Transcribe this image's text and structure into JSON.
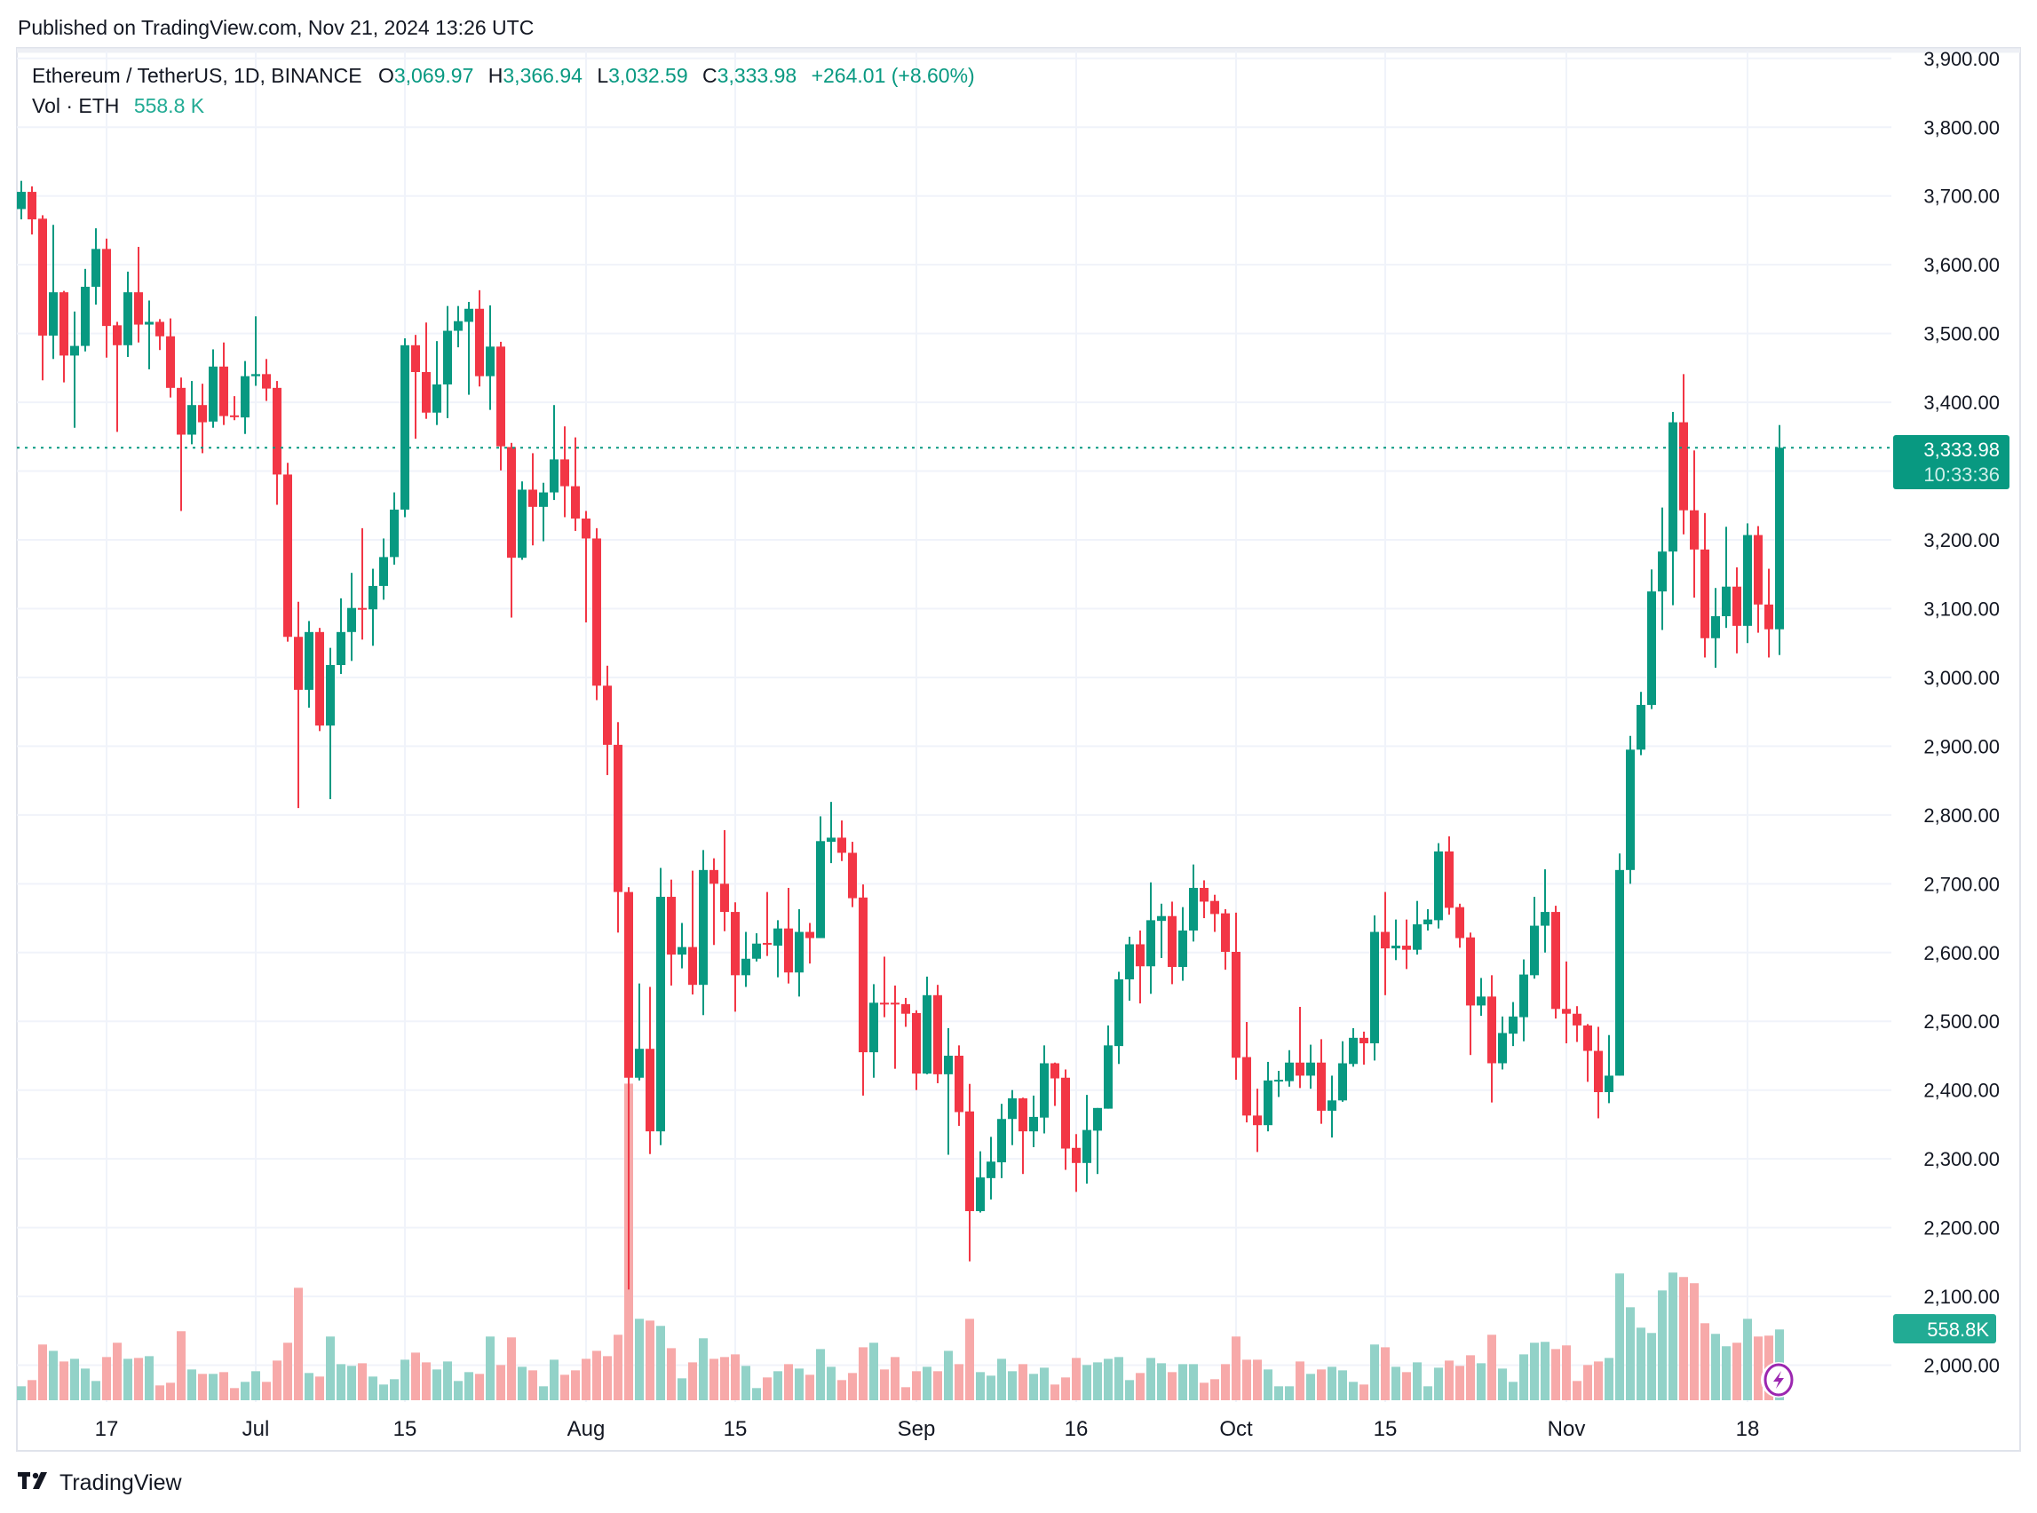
{
  "published": "Published on TradingView.com, Nov 21, 2024 13:26 UTC",
  "legend": {
    "symbol": "Ethereum / TetherUS, 1D, BINANCE",
    "o_label": "O",
    "o": "3,069.97",
    "h_label": "H",
    "h": "3,366.94",
    "l_label": "L",
    "l": "3,032.59",
    "c_label": "C",
    "c": "3,333.98",
    "change": "+264.01 (+8.60%)",
    "vol_label": "Vol · ETH",
    "vol": "558.8 K"
  },
  "price_badge": {
    "price": "3,333.98",
    "countdown": "10:33:36"
  },
  "volume_badge": "558.8K",
  "logo": "TradingView",
  "icons": {
    "lightning": "lightning-icon",
    "logo": "tradingview-logo-icon"
  },
  "colors": {
    "up": "#089981",
    "down": "#F23645",
    "up_volume": "#92d2c8",
    "down_volume": "#f7a9a9",
    "badge": "#089981",
    "lightning": "#9c27b0"
  },
  "chart_data": {
    "type": "candlestick",
    "symbol": "ETHUSDT",
    "interval": "1D",
    "ylim": [
      1950,
      3920
    ],
    "grid": true,
    "last_price": 3333.98,
    "y_ticks": [
      "3,900.00",
      "3,800.00",
      "3,700.00",
      "3,600.00",
      "3,500.00",
      "3,400.00",
      "3,200.00",
      "3,100.00",
      "3,000.00",
      "2,900.00",
      "2,800.00",
      "2,700.00",
      "2,600.00",
      "2,500.00",
      "2,400.00",
      "2,300.00",
      "2,200.00",
      "2,100.00",
      "2,000.00"
    ],
    "y_tick_values": [
      3900,
      3800,
      3700,
      3600,
      3500,
      3400,
      3200,
      3100,
      3000,
      2900,
      2800,
      2700,
      2600,
      2500,
      2400,
      2300,
      2200,
      2100,
      2000
    ],
    "x_ticks": [
      {
        "label": "17",
        "date": "2024-06-17"
      },
      {
        "label": "Jul",
        "date": "2024-07-01"
      },
      {
        "label": "15",
        "date": "2024-07-15"
      },
      {
        "label": "Aug",
        "date": "2024-08-01"
      },
      {
        "label": "15",
        "date": "2024-08-15"
      },
      {
        "label": "Sep",
        "date": "2024-09-01"
      },
      {
        "label": "16",
        "date": "2024-09-16"
      },
      {
        "label": "Oct",
        "date": "2024-10-01"
      },
      {
        "label": "15",
        "date": "2024-10-15"
      },
      {
        "label": "Nov",
        "date": "2024-11-01"
      },
      {
        "label": "18",
        "date": "2024-11-18"
      }
    ],
    "dates": [
      "2024-06-09",
      "2024-06-10",
      "2024-06-11",
      "2024-06-12",
      "2024-06-13",
      "2024-06-14",
      "2024-06-15",
      "2024-06-16",
      "2024-06-17",
      "2024-06-18",
      "2024-06-19",
      "2024-06-20",
      "2024-06-21",
      "2024-06-22",
      "2024-06-23",
      "2024-06-24",
      "2024-06-25",
      "2024-06-26",
      "2024-06-27",
      "2024-06-28",
      "2024-06-29",
      "2024-06-30",
      "2024-07-01",
      "2024-07-02",
      "2024-07-03",
      "2024-07-04",
      "2024-07-05",
      "2024-07-06",
      "2024-07-07",
      "2024-07-08",
      "2024-07-09",
      "2024-07-10",
      "2024-07-11",
      "2024-07-12",
      "2024-07-13",
      "2024-07-14",
      "2024-07-15",
      "2024-07-16",
      "2024-07-17",
      "2024-07-18",
      "2024-07-19",
      "2024-07-20",
      "2024-07-21",
      "2024-07-22",
      "2024-07-23",
      "2024-07-24",
      "2024-07-25",
      "2024-07-26",
      "2024-07-27",
      "2024-07-28",
      "2024-07-29",
      "2024-07-30",
      "2024-07-31",
      "2024-08-01",
      "2024-08-02",
      "2024-08-03",
      "2024-08-04",
      "2024-08-05",
      "2024-08-06",
      "2024-08-07",
      "2024-08-08",
      "2024-08-09",
      "2024-08-10",
      "2024-08-11",
      "2024-08-12",
      "2024-08-13",
      "2024-08-14",
      "2024-08-15",
      "2024-08-16",
      "2024-08-17",
      "2024-08-18",
      "2024-08-19",
      "2024-08-20",
      "2024-08-21",
      "2024-08-22",
      "2024-08-23",
      "2024-08-24",
      "2024-08-25",
      "2024-08-26",
      "2024-08-27",
      "2024-08-28",
      "2024-08-29",
      "2024-08-30",
      "2024-08-31",
      "2024-09-01",
      "2024-09-02",
      "2024-09-03",
      "2024-09-04",
      "2024-09-05",
      "2024-09-06",
      "2024-09-07",
      "2024-09-08",
      "2024-09-09",
      "2024-09-10",
      "2024-09-11",
      "2024-09-12",
      "2024-09-13",
      "2024-09-14",
      "2024-09-15",
      "2024-09-16",
      "2024-09-17",
      "2024-09-18",
      "2024-09-19",
      "2024-09-20",
      "2024-09-21",
      "2024-09-22",
      "2024-09-23",
      "2024-09-24",
      "2024-09-25",
      "2024-09-26",
      "2024-09-27",
      "2024-09-28",
      "2024-09-29",
      "2024-09-30",
      "2024-10-01",
      "2024-10-02",
      "2024-10-03",
      "2024-10-04",
      "2024-10-05",
      "2024-10-06",
      "2024-10-07",
      "2024-10-08",
      "2024-10-09",
      "2024-10-10",
      "2024-10-11",
      "2024-10-12",
      "2024-10-13",
      "2024-10-14",
      "2024-10-15",
      "2024-10-16",
      "2024-10-17",
      "2024-10-18",
      "2024-10-19",
      "2024-10-20",
      "2024-10-21",
      "2024-10-22",
      "2024-10-23",
      "2024-10-24",
      "2024-10-25",
      "2024-10-26",
      "2024-10-27",
      "2024-10-28",
      "2024-10-29",
      "2024-10-30",
      "2024-10-31",
      "2024-11-01",
      "2024-11-02",
      "2024-11-03",
      "2024-11-04",
      "2024-11-05",
      "2024-11-06",
      "2024-11-07",
      "2024-11-08",
      "2024-11-09",
      "2024-11-10",
      "2024-11-11",
      "2024-11-12",
      "2024-11-13",
      "2024-11-14",
      "2024-11-15",
      "2024-11-16",
      "2024-11-17",
      "2024-11-18",
      "2024-11-19",
      "2024-11-20",
      "2024-11-21"
    ],
    "ohlc_columns": [
      "open",
      "high",
      "low",
      "close"
    ],
    "ohlc": [
      [
        3681,
        3722,
        3666,
        3706
      ],
      [
        3706,
        3714,
        3644,
        3666
      ],
      [
        3667,
        3672,
        3432,
        3497
      ],
      [
        3497,
        3658,
        3463,
        3560
      ],
      [
        3560,
        3562,
        3429,
        3468
      ],
      [
        3468,
        3532,
        3363,
        3482
      ],
      [
        3482,
        3594,
        3474,
        3568
      ],
      [
        3568,
        3653,
        3542,
        3623
      ],
      [
        3623,
        3638,
        3465,
        3511
      ],
      [
        3512,
        3517,
        3357,
        3483
      ],
      [
        3483,
        3590,
        3466,
        3560
      ],
      [
        3560,
        3626,
        3487,
        3513
      ],
      [
        3513,
        3548,
        3448,
        3517
      ],
      [
        3517,
        3521,
        3476,
        3496
      ],
      [
        3496,
        3522,
        3407,
        3421
      ],
      [
        3421,
        3436,
        3242,
        3353
      ],
      [
        3353,
        3431,
        3339,
        3396
      ],
      [
        3396,
        3427,
        3326,
        3371
      ],
      [
        3372,
        3477,
        3363,
        3452
      ],
      [
        3452,
        3487,
        3367,
        3380
      ],
      [
        3381,
        3409,
        3374,
        3380
      ],
      [
        3378,
        3460,
        3354,
        3438
      ],
      [
        3438,
        3525,
        3424,
        3441
      ],
      [
        3441,
        3463,
        3402,
        3420
      ],
      [
        3421,
        3431,
        3251,
        3295
      ],
      [
        3295,
        3312,
        3052,
        3059
      ],
      [
        3059,
        3110,
        2810,
        2982
      ],
      [
        2982,
        3082,
        2956,
        3066
      ],
      [
        3066,
        3072,
        2922,
        2930
      ],
      [
        2930,
        3043,
        2823,
        3018
      ],
      [
        3018,
        3115,
        3005,
        3066
      ],
      [
        3066,
        3152,
        3024,
        3101
      ],
      [
        3101,
        3217,
        3055,
        3100
      ],
      [
        3099,
        3158,
        3046,
        3133
      ],
      [
        3133,
        3202,
        3113,
        3175
      ],
      [
        3175,
        3269,
        3164,
        3244
      ],
      [
        3244,
        3493,
        3233,
        3483
      ],
      [
        3483,
        3498,
        3347,
        3444
      ],
      [
        3444,
        3516,
        3376,
        3385
      ],
      [
        3385,
        3489,
        3367,
        3426
      ],
      [
        3426,
        3540,
        3377,
        3504
      ],
      [
        3504,
        3540,
        3480,
        3518
      ],
      [
        3517,
        3546,
        3411,
        3536
      ],
      [
        3536,
        3563,
        3423,
        3438
      ],
      [
        3438,
        3541,
        3389,
        3481
      ],
      [
        3481,
        3488,
        3301,
        3336
      ],
      [
        3335,
        3341,
        3087,
        3174
      ],
      [
        3174,
        3285,
        3171,
        3273
      ],
      [
        3273,
        3326,
        3192,
        3248
      ],
      [
        3248,
        3283,
        3198,
        3269
      ],
      [
        3269,
        3396,
        3258,
        3317
      ],
      [
        3317,
        3365,
        3233,
        3278
      ],
      [
        3278,
        3349,
        3213,
        3231
      ],
      [
        3231,
        3242,
        3080,
        3202
      ],
      [
        3202,
        3217,
        2967,
        2988
      ],
      [
        2988,
        3017,
        2858,
        2902
      ],
      [
        2902,
        2935,
        2629,
        2688
      ],
      [
        2688,
        2695,
        2110,
        2418
      ],
      [
        2418,
        2555,
        2414,
        2460
      ],
      [
        2460,
        2550,
        2307,
        2340
      ],
      [
        2340,
        2723,
        2320,
        2681
      ],
      [
        2681,
        2706,
        2552,
        2597
      ],
      [
        2597,
        2643,
        2577,
        2608
      ],
      [
        2608,
        2719,
        2539,
        2553
      ],
      [
        2553,
        2749,
        2509,
        2720
      ],
      [
        2720,
        2737,
        2611,
        2700
      ],
      [
        2700,
        2778,
        2631,
        2659
      ],
      [
        2659,
        2673,
        2514,
        2567
      ],
      [
        2567,
        2630,
        2550,
        2591
      ],
      [
        2591,
        2628,
        2587,
        2613
      ],
      [
        2614,
        2688,
        2595,
        2613
      ],
      [
        2610,
        2647,
        2564,
        2635
      ],
      [
        2635,
        2694,
        2555,
        2571
      ],
      [
        2571,
        2663,
        2536,
        2630
      ],
      [
        2630,
        2643,
        2584,
        2621
      ],
      [
        2621,
        2798,
        2621,
        2762
      ],
      [
        2761,
        2819,
        2730,
        2767
      ],
      [
        2767,
        2792,
        2733,
        2745
      ],
      [
        2745,
        2761,
        2666,
        2679
      ],
      [
        2680,
        2699,
        2392,
        2455
      ],
      [
        2455,
        2554,
        2418,
        2527
      ],
      [
        2527,
        2594,
        2506,
        2526
      ],
      [
        2527,
        2552,
        2431,
        2526
      ],
      [
        2525,
        2534,
        2492,
        2511
      ],
      [
        2512,
        2516,
        2400,
        2424
      ],
      [
        2424,
        2565,
        2423,
        2538
      ],
      [
        2538,
        2553,
        2410,
        2423
      ],
      [
        2423,
        2490,
        2306,
        2450
      ],
      [
        2450,
        2465,
        2348,
        2368
      ],
      [
        2369,
        2409,
        2151,
        2224
      ],
      [
        2224,
        2311,
        2222,
        2273
      ],
      [
        2272,
        2332,
        2241,
        2296
      ],
      [
        2295,
        2380,
        2272,
        2358
      ],
      [
        2358,
        2400,
        2320,
        2388
      ],
      [
        2388,
        2389,
        2278,
        2340
      ],
      [
        2340,
        2392,
        2317,
        2361
      ],
      [
        2360,
        2465,
        2337,
        2439
      ],
      [
        2439,
        2440,
        2377,
        2417
      ],
      [
        2418,
        2430,
        2284,
        2315
      ],
      [
        2316,
        2336,
        2252,
        2294
      ],
      [
        2294,
        2393,
        2264,
        2342
      ],
      [
        2341,
        2374,
        2278,
        2374
      ],
      [
        2373,
        2494,
        2373,
        2465
      ],
      [
        2464,
        2572,
        2438,
        2561
      ],
      [
        2561,
        2623,
        2530,
        2612
      ],
      [
        2612,
        2632,
        2526,
        2580
      ],
      [
        2580,
        2702,
        2540,
        2647
      ],
      [
        2646,
        2671,
        2592,
        2653
      ],
      [
        2653,
        2674,
        2554,
        2579
      ],
      [
        2579,
        2666,
        2559,
        2632
      ],
      [
        2632,
        2728,
        2616,
        2694
      ],
      [
        2694,
        2705,
        2650,
        2674
      ],
      [
        2675,
        2684,
        2630,
        2656
      ],
      [
        2657,
        2663,
        2575,
        2601
      ],
      [
        2601,
        2658,
        2415,
        2447
      ],
      [
        2448,
        2499,
        2353,
        2363
      ],
      [
        2363,
        2402,
        2310,
        2349
      ],
      [
        2349,
        2441,
        2340,
        2414
      ],
      [
        2414,
        2428,
        2390,
        2415
      ],
      [
        2413,
        2458,
        2405,
        2440
      ],
      [
        2440,
        2521,
        2403,
        2421
      ],
      [
        2421,
        2466,
        2402,
        2440
      ],
      [
        2440,
        2474,
        2351,
        2370
      ],
      [
        2370,
        2421,
        2331,
        2385
      ],
      [
        2385,
        2471,
        2383,
        2439
      ],
      [
        2438,
        2490,
        2434,
        2476
      ],
      [
        2476,
        2485,
        2437,
        2468
      ],
      [
        2468,
        2654,
        2443,
        2630
      ],
      [
        2630,
        2688,
        2538,
        2606
      ],
      [
        2606,
        2648,
        2589,
        2610
      ],
      [
        2610,
        2648,
        2576,
        2604
      ],
      [
        2604,
        2675,
        2597,
        2641
      ],
      [
        2641,
        2663,
        2632,
        2648
      ],
      [
        2647,
        2759,
        2635,
        2747
      ],
      [
        2747,
        2769,
        2655,
        2665
      ],
      [
        2666,
        2671,
        2607,
        2621
      ],
      [
        2622,
        2629,
        2451,
        2523
      ],
      [
        2523,
        2563,
        2508,
        2536
      ],
      [
        2536,
        2567,
        2382,
        2439
      ],
      [
        2439,
        2507,
        2430,
        2483
      ],
      [
        2482,
        2528,
        2464,
        2507
      ],
      [
        2506,
        2590,
        2471,
        2568
      ],
      [
        2567,
        2681,
        2562,
        2639
      ],
      [
        2639,
        2721,
        2600,
        2659
      ],
      [
        2659,
        2668,
        2504,
        2518
      ],
      [
        2518,
        2587,
        2468,
        2511
      ],
      [
        2511,
        2522,
        2470,
        2494
      ],
      [
        2494,
        2496,
        2412,
        2457
      ],
      [
        2457,
        2492,
        2359,
        2397
      ],
      [
        2397,
        2480,
        2381,
        2421
      ],
      [
        2421,
        2744,
        2421,
        2720
      ],
      [
        2720,
        2915,
        2700,
        2895
      ],
      [
        2895,
        2979,
        2887,
        2960
      ],
      [
        2960,
        3157,
        2954,
        3125
      ],
      [
        3125,
        3247,
        3069,
        3183
      ],
      [
        3183,
        3386,
        3105,
        3371
      ],
      [
        3371,
        3441,
        3208,
        3243
      ],
      [
        3243,
        3330,
        3116,
        3186
      ],
      [
        3186,
        3239,
        3029,
        3057
      ],
      [
        3057,
        3130,
        3014,
        3089
      ],
      [
        3089,
        3219,
        3072,
        3132
      ],
      [
        3132,
        3160,
        3035,
        3075
      ],
      [
        3075,
        3224,
        3050,
        3207
      ],
      [
        3207,
        3220,
        3065,
        3106
      ],
      [
        3106,
        3158,
        3029,
        3070
      ],
      [
        3069.97,
        3366.94,
        3032.59,
        3333.98
      ]
    ],
    "volume_unit": "K ETH",
    "volume": [
      110,
      159,
      440,
      390,
      306,
      327,
      250,
      152,
      341,
      454,
      327,
      334,
      348,
      117,
      138,
      545,
      243,
      208,
      208,
      222,
      96,
      145,
      229,
      145,
      313,
      454,
      888,
      215,
      187,
      503,
      285,
      271,
      292,
      187,
      124,
      166,
      320,
      376,
      299,
      243,
      306,
      152,
      222,
      208,
      503,
      278,
      496,
      264,
      236,
      110,
      320,
      201,
      236,
      327,
      390,
      348,
      517,
      2500,
      643,
      629,
      587,
      411,
      173,
      299,
      489,
      327,
      341,
      362,
      271,
      96,
      180,
      229,
      285,
      250,
      201,
      404,
      264,
      159,
      215,
      418,
      454,
      243,
      341,
      103,
      229,
      264,
      229,
      390,
      285,
      643,
      222,
      194,
      327,
      229,
      285,
      208,
      257,
      124,
      180,
      334,
      278,
      299,
      327,
      341,
      159,
      215,
      334,
      292,
      222,
      285,
      285,
      138,
      166,
      285,
      503,
      320,
      320,
      243,
      110,
      110,
      306,
      208,
      243,
      264,
      236,
      145,
      124,
      440,
      418,
      264,
      222,
      299,
      110,
      257,
      313,
      271,
      355,
      292,
      517,
      250,
      145,
      362,
      454,
      461,
      404,
      433,
      152,
      278,
      306,
      334,
      1001,
      734,
      573,
      531,
      867,
      1008,
      973,
      924,
      608,
      524,
      426,
      454,
      643,
      503,
      510,
      558.8
    ]
  }
}
